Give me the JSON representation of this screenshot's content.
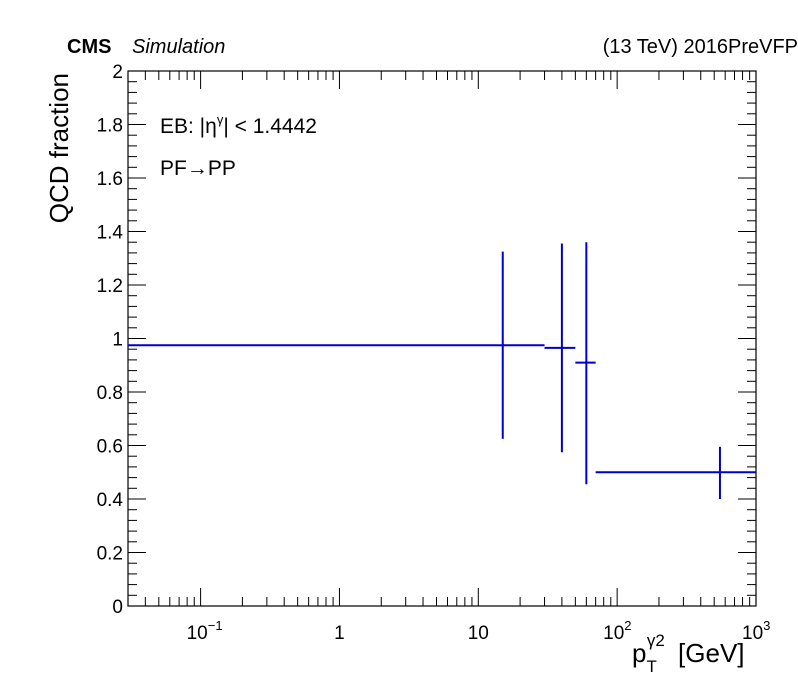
{
  "header": {
    "experiment": "CMS",
    "tag": "Simulation",
    "energy_label": "(13 TeV) 2016PreVFP"
  },
  "chart_data": {
    "type": "scatter",
    "title": "",
    "xlabel": "p_T^{γ2} [GeV]",
    "ylabel": "QCD fraction",
    "x_scale": "log",
    "xlim": [
      0.03,
      1000
    ],
    "ylim": [
      0,
      2
    ],
    "grid": false,
    "x_ticks": [
      {
        "value": 0.1,
        "base": "10",
        "exp": "−1"
      },
      {
        "value": 1,
        "base": "1",
        "exp": ""
      },
      {
        "value": 10,
        "base": "10",
        "exp": ""
      },
      {
        "value": 100,
        "base": "10",
        "exp": "2"
      },
      {
        "value": 1000,
        "base": "10",
        "exp": "3"
      }
    ],
    "y_ticks": [
      "0",
      "0.2",
      "0.4",
      "0.6",
      "0.8",
      "1",
      "1.2",
      "1.4",
      "1.6",
      "1.8",
      "2"
    ],
    "annotations": [
      {
        "prefix": "EB: |η",
        "sup": "γ",
        "suffix": "| < 1.4442"
      },
      {
        "text": "PF→PP"
      }
    ],
    "series": [
      {
        "color": "#0000cc",
        "points": [
          {
            "x": 15,
            "xlo": 0.03,
            "xhi": 30,
            "y": 0.975,
            "ylo": 0.625,
            "yhi": 1.325
          },
          {
            "x": 40,
            "xlo": 30,
            "xhi": 50,
            "y": 0.965,
            "ylo": 0.575,
            "yhi": 1.355
          },
          {
            "x": 60,
            "xlo": 50,
            "xhi": 70,
            "y": 0.91,
            "ylo": 0.455,
            "yhi": 1.36
          },
          {
            "x": 550,
            "xlo": 70,
            "xhi": 1000,
            "y": 0.5,
            "ylo": 0.4,
            "yhi": 0.595
          }
        ]
      }
    ]
  }
}
